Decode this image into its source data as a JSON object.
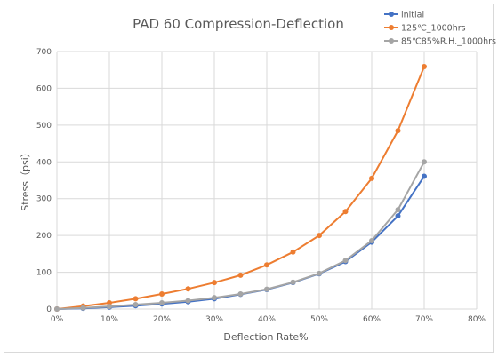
{
  "chart_data": {
    "type": "line",
    "title": "PAD 60 Compression-Deflection",
    "xlabel": "Deflection Rate%",
    "ylabel": "Stress（psi）",
    "xlim": [
      0,
      80
    ],
    "ylim": [
      0,
      700
    ],
    "x_ticks": [
      "0%",
      "10%",
      "20%",
      "30%",
      "40%",
      "50%",
      "60%",
      "70%",
      "80%"
    ],
    "x_tick_values": [
      0,
      10,
      20,
      30,
      40,
      50,
      60,
      70,
      80
    ],
    "y_ticks": [
      0,
      100,
      200,
      300,
      400,
      500,
      600,
      700
    ],
    "grid": true,
    "legend_position": "top-right",
    "series": [
      {
        "name": "initial",
        "color": "#4472c4",
        "x": [
          0,
          5,
          10,
          15,
          20,
          25,
          30,
          35,
          40,
          45,
          50,
          55,
          60,
          65,
          70
        ],
        "y": [
          0,
          2,
          5,
          9,
          14,
          20,
          28,
          40,
          53,
          72,
          96,
          129,
          182,
          253,
          361
        ]
      },
      {
        "name": "125℃_1000hrs",
        "color": "#ed7d31",
        "x": [
          0,
          5,
          10,
          15,
          20,
          25,
          30,
          35,
          40,
          45,
          50,
          55,
          60,
          65,
          70
        ],
        "y": [
          0,
          8,
          17,
          28,
          41,
          55,
          72,
          92,
          120,
          155,
          200,
          265,
          355,
          485,
          659
        ]
      },
      {
        "name": "85℃85%R.H._1000hrs",
        "color": "#a5a5a5",
        "x": [
          0,
          5,
          10,
          15,
          20,
          25,
          30,
          35,
          40,
          45,
          50,
          55,
          60,
          65,
          70
        ],
        "y": [
          0,
          3,
          7,
          12,
          17,
          23,
          31,
          41,
          54,
          73,
          97,
          132,
          186,
          270,
          400
        ]
      }
    ]
  }
}
